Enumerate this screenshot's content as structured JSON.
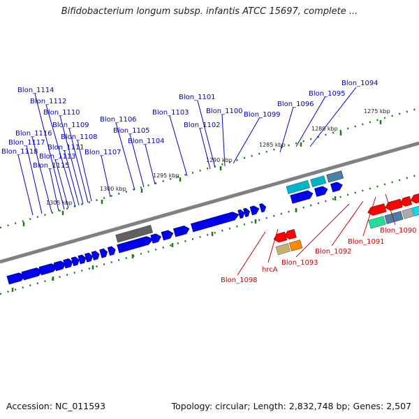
{
  "title": "Bifidobacterium longum subsp. infantis ATCC 15697, complete ...",
  "footer": {
    "accession": "Accession: NC_011593",
    "topology": "Topology: circular; Length: 2,832,748 bp; Genes: 2,507"
  },
  "colors": {
    "blue_genes": "#0000ee",
    "red_genes": "#ff0000",
    "label_blue": "#0000cc",
    "label_red": "#cc0000",
    "backbone": "#808080",
    "ticks": "#1a7a1a"
  },
  "scale_labels": [
    "1275 kbp",
    "1280 kbp",
    "1285 kbp",
    "1290 kbp",
    "1295 kbp",
    "1300 kbp",
    "1305 kbp"
  ],
  "gene_labels_top": [
    "Blon_1094",
    "Blon_1095",
    "Blon_1096",
    "Blon_1099",
    "Blon_1100",
    "Blon_1101",
    "Blon_1102",
    "Blon_1103",
    "Blon_1104",
    "Blon_1105",
    "Blon_1106",
    "Blon_1107",
    "Blon_1108",
    "Blon_1109",
    "Blon_1110",
    "Blon_1111",
    "Blon_1112",
    "Blon_1113",
    "Blon_1114",
    "Blon_1115",
    "Blon_1116",
    "Blon_1117",
    "Blon_1118"
  ],
  "gene_labels_bottom": [
    "Blon_1090",
    "Blon_1091",
    "Blon_1092",
    "Blon_1093",
    "hrcA",
    "Blon_1098"
  ]
}
